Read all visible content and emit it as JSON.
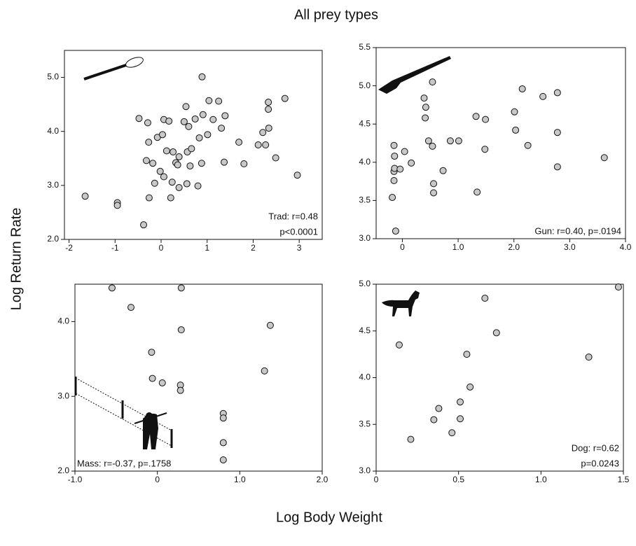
{
  "title": "All prey types",
  "x_label": "Log Body Weight",
  "y_label": "Log Return Rate",
  "chart_data": [
    {
      "type": "scatter",
      "color": "#c8c8c8",
      "annotation": [
        "Trad: r=0.48",
        "p<0.0001"
      ],
      "xlim": [
        -2.1,
        3.5
      ],
      "ylim": [
        2.0,
        5.5
      ],
      "xticks": [
        -2,
        -1,
        0,
        1,
        2,
        3
      ],
      "yticks": [
        {
          "value": 2,
          "label": "2.0"
        },
        {
          "value": 3,
          "label": "3.0"
        },
        {
          "value": 4,
          "label": "4.0"
        },
        {
          "value": 5,
          "label": "5.0"
        }
      ],
      "x": [
        -1.65,
        -0.95,
        -0.95,
        -0.38,
        -0.48,
        -0.29,
        -0.27,
        -0.32,
        -0.26,
        -0.18,
        -0.14,
        -0.08,
        -0.02,
        0.03,
        0.06,
        0.06,
        0.12,
        0.17,
        0.21,
        0.24,
        0.26,
        0.32,
        0.36,
        0.39,
        0.39,
        0.5,
        0.54,
        0.56,
        0.57,
        0.6,
        0.63,
        0.66,
        0.74,
        0.8,
        0.83,
        0.88,
        0.89,
        0.91,
        1.01,
        1.04,
        1.13,
        1.25,
        1.31,
        1.39,
        1.37,
        1.69,
        1.8,
        2.11,
        2.21,
        2.27,
        2.33,
        2.33,
        2.34,
        2.49,
        2.69,
        2.96
      ],
      "y": [
        2.8,
        2.68,
        2.63,
        2.27,
        4.24,
        4.16,
        3.8,
        3.46,
        2.77,
        3.41,
        3.04,
        3.89,
        3.26,
        3.94,
        4.22,
        3.16,
        3.64,
        4.19,
        2.77,
        3.06,
        3.62,
        3.42,
        3.38,
        3.53,
        2.96,
        4.18,
        4.46,
        3.03,
        3.62,
        4.09,
        3.36,
        3.68,
        4.23,
        2.99,
        3.88,
        3.41,
        5.01,
        4.31,
        3.94,
        4.57,
        4.22,
        4.56,
        4.06,
        4.29,
        3.43,
        3.8,
        3.4,
        3.75,
        3.98,
        3.75,
        4.54,
        4.41,
        4.06,
        3.51,
        4.61,
        3.19
      ]
    },
    {
      "type": "scatter",
      "color": "#c8c8c8",
      "annotation": [
        "Gun: r=0.40, p=.0194"
      ],
      "xlim": [
        -0.47,
        4.0
      ],
      "ylim": [
        3.0,
        5.5
      ],
      "xticks": [
        0,
        {
          "value": 1,
          "label": "1.0"
        },
        {
          "value": 2,
          "label": "2.0"
        },
        {
          "value": 3,
          "label": "3.0"
        },
        {
          "value": 4,
          "label": "4.0"
        }
      ],
      "yticks": [
        {
          "value": 3,
          "label": "3.0"
        },
        3.5,
        {
          "value": 4,
          "label": "4.0"
        },
        4.5,
        {
          "value": 5,
          "label": "5.0"
        },
        5.5
      ],
      "x": [
        -0.12,
        -0.18,
        -0.15,
        -0.15,
        -0.14,
        -0.14,
        -0.15,
        -0.04,
        0.04,
        0.16,
        0.39,
        0.42,
        0.41,
        0.47,
        0.54,
        0.54,
        0.56,
        0.56,
        0.73,
        0.86,
        1.01,
        1.32,
        1.34,
        1.49,
        1.48,
        2.01,
        2.03,
        2.15,
        2.25,
        2.52,
        2.78,
        2.78,
        2.78,
        3.62
      ],
      "y": [
        3.1,
        3.54,
        3.76,
        3.88,
        3.92,
        4.08,
        4.22,
        3.91,
        4.14,
        3.99,
        4.84,
        4.72,
        4.58,
        4.28,
        4.21,
        5.05,
        3.72,
        3.6,
        3.89,
        4.28,
        4.28,
        4.6,
        3.61,
        4.56,
        4.17,
        4.66,
        4.42,
        4.96,
        4.22,
        4.86,
        3.94,
        4.39,
        4.91,
        4.06
      ]
    },
    {
      "type": "scatter",
      "color": "#c8c8c8",
      "annotation": [
        "Mass: r=-0.37, p=.1758"
      ],
      "xlim": [
        -1.0,
        2.0
      ],
      "ylim": [
        2.0,
        4.5
      ],
      "xticks": [
        {
          "value": -1,
          "label": "-1.0"
        },
        0,
        {
          "value": 1,
          "label": "1.0"
        },
        {
          "value": 2,
          "label": "2.0"
        }
      ],
      "yticks": [
        {
          "value": 2,
          "label": "2.0"
        },
        {
          "value": 3,
          "label": "3.0"
        },
        {
          "value": 4,
          "label": "4.0"
        }
      ],
      "x": [
        -0.55,
        -0.32,
        0.29,
        -0.07,
        -0.06,
        0.06,
        0.29,
        0.28,
        0.28,
        1.37,
        1.3,
        0.8,
        0.8,
        0.8,
        0.8
      ],
      "y": [
        4.45,
        4.19,
        4.45,
        3.59,
        3.24,
        3.18,
        3.89,
        3.15,
        3.08,
        3.95,
        3.34,
        2.77,
        2.71,
        2.38,
        2.15
      ]
    },
    {
      "type": "scatter",
      "color": "#c8c8c8",
      "annotation": [
        "Dog: r=0.62",
        "p=0.0243"
      ],
      "xlim": [
        0,
        1.5
      ],
      "ylim": [
        3.0,
        5.0
      ],
      "xticks": [
        0,
        0.5,
        {
          "value": 1,
          "label": "1.0"
        },
        1.5
      ],
      "yticks": [
        {
          "value": 3,
          "label": "3.0"
        },
        3.5,
        {
          "value": 4,
          "label": "4.0"
        },
        4.5,
        {
          "value": 5,
          "label": "5.0"
        }
      ],
      "x": [
        0.14,
        0.21,
        0.35,
        0.38,
        0.46,
        0.51,
        0.51,
        0.55,
        0.57,
        0.66,
        0.73,
        1.29,
        1.47
      ],
      "y": [
        4.35,
        3.34,
        3.55,
        3.67,
        3.41,
        3.74,
        3.56,
        4.25,
        3.9,
        4.85,
        4.48,
        4.22,
        4.97
      ]
    }
  ]
}
